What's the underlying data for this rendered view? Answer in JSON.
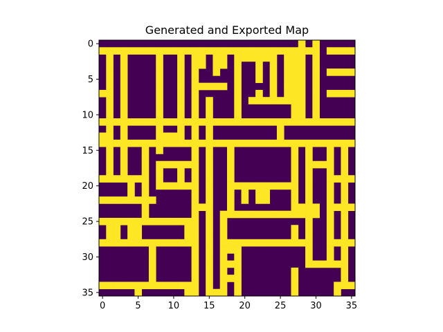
{
  "chart_data": {
    "type": "heatmap",
    "title": "Generated and Exported Map",
    "xlabel": "",
    "ylabel": "",
    "colormap": "viridis",
    "colors": {
      "low": "#440154",
      "high": "#fde725"
    },
    "grid": false,
    "shape": [
      36,
      36
    ],
    "xlim": [
      -0.5,
      35.5
    ],
    "ylim": [
      35.5,
      -0.5
    ],
    "x_ticks": [
      0,
      5,
      10,
      15,
      20,
      25,
      30,
      35
    ],
    "y_ticks": [
      0,
      5,
      10,
      15,
      20,
      25,
      30,
      35
    ],
    "x_tick_labels": [
      "0",
      "5",
      "10",
      "15",
      "20",
      "25",
      "30",
      "35"
    ],
    "y_tick_labels": [
      "0",
      "5",
      "10",
      "15",
      "20",
      "25",
      "30",
      "35"
    ],
    "values": [
      "000000000000000000000000000010100000",
      "111111111111111111111111111111101111",
      "010100001001011011011111101110100000",
      "010100001001011011010010101110100000",
      "010100001001010010010010101110101111",
      "010100001001010000010010101110100000",
      "010100001001011111010000101110100000",
      "110100001001010000010010101110101111",
      "010100001001010100010111111110100000",
      "010100001001010100010000000110100000",
      "010100001001010100010000000110100000",
      "111111111111111111111111111111111111",
      "010100001001010100000000010000000000",
      "110100001111010100000000010000000000",
      "111111111111111111111111111111111111",
      "010100101000010100100000000101001010",
      "010100100000010100100000000101001010",
      "010100101111110100100000000101111010",
      "010100101001010100100000000101001010",
      "111111101001010100100000000101001111",
      "000010101111110100111111111101001010",
      "000010100000010100101011000101001010",
      "111111110000010100101011000101001010",
      "000000100000011100100000000111101111",
      "000000100000010101111111111111101010",
      "111111111111110101000000000001001010",
      "011011000000110101000000000101001010",
      "011011000000110101000000000101001010",
      "111111111111110101111111111111001111",
      "000000010000010101110000000001001010",
      "000000010000010101010000000001001010",
      "000000010000010101110000000001111110",
      "000000010000010101010000000100000010",
      "000000010000010101110000000100000010",
      "111111111111110101010000000100000111",
      "000001000000110111010000000100000100"
    ]
  }
}
